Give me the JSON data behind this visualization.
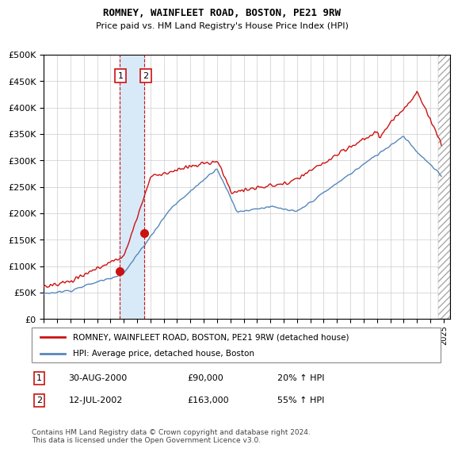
{
  "title": "ROMNEY, WAINFLEET ROAD, BOSTON, PE21 9RW",
  "subtitle": "Price paid vs. HM Land Registry's House Price Index (HPI)",
  "legend_line1": "ROMNEY, WAINFLEET ROAD, BOSTON, PE21 9RW (detached house)",
  "legend_line2": "HPI: Average price, detached house, Boston",
  "footer": "Contains HM Land Registry data © Crown copyright and database right 2024.\nThis data is licensed under the Open Government Licence v3.0.",
  "transaction1_date": "30-AUG-2000",
  "transaction1_price": "£90,000",
  "transaction1_hpi": "20% ↑ HPI",
  "transaction2_date": "12-JUL-2002",
  "transaction2_price": "£163,000",
  "transaction2_hpi": "55% ↑ HPI",
  "ylim": [
    0,
    500000
  ],
  "yticks": [
    0,
    50000,
    100000,
    150000,
    200000,
    250000,
    300000,
    350000,
    400000,
    450000,
    500000
  ],
  "hpi_line_color": "#5588bb",
  "price_line_color": "#cc1111",
  "marker_color": "#cc1111",
  "transaction_box_color": "#cc1111",
  "shade_color": "#d8eaf8",
  "marker1_x": 2000.667,
  "marker1_y": 90000,
  "marker2_x": 2002.542,
  "marker2_y": 163000,
  "vline1_x": 2000.667,
  "vline2_x": 2002.542,
  "xmin": 1995.0,
  "xmax": 2025.5,
  "hatch_start": 2024.58
}
